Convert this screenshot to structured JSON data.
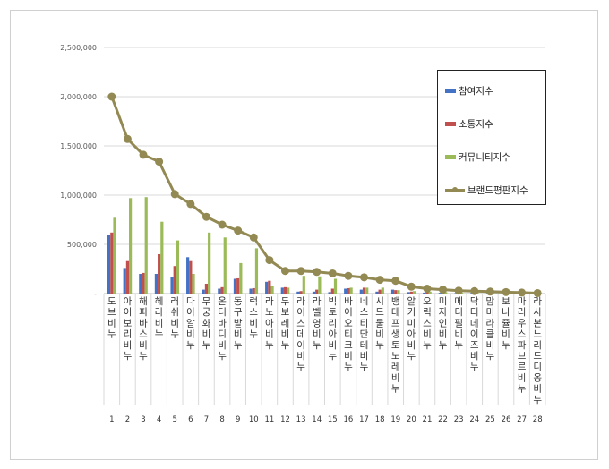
{
  "chart_data": {
    "type": "bar",
    "ylim": [
      0,
      2500000
    ],
    "yticks": [
      "2,500,000",
      "2,000,000",
      "1,500,000",
      "1,000,000",
      "500,000",
      "-"
    ],
    "categories": [
      "도브 비누",
      "아이보리비누",
      "해피바스비누",
      "헤라비누",
      "러쉬비누",
      "다이알비누",
      "무궁화비누",
      "온더바디비누",
      "동구밭비누",
      "럭스비누",
      "라노아비누",
      "두보레비누",
      "라이스데이비누",
      "라벨영비누",
      "빅토리아비누",
      "바이오티크비누",
      "네스티단테비누",
      "시드물비누",
      "뱅데프생토노레비누",
      "알키미아비누",
      "오릭스비누",
      "미자인비누",
      "메디필비누",
      "닥터데이즈비누",
      "맘미라클비누",
      "보나쥴비누",
      "마리우스파브르비누",
      "라사본느리드디옹비누"
    ],
    "numbers": [
      "1",
      "2",
      "3",
      "4",
      "5",
      "6",
      "7",
      "8",
      "9",
      "10",
      "11",
      "12",
      "13",
      "14",
      "15",
      "16",
      "17",
      "18",
      "19",
      "20",
      "21",
      "22",
      "23",
      "24",
      "25",
      "26",
      "27",
      "28"
    ],
    "series": [
      {
        "name": "참여지수",
        "color": "#4472c4",
        "values": [
          600000,
          260000,
          200000,
          200000,
          170000,
          370000,
          40000,
          50000,
          150000,
          50000,
          120000,
          60000,
          20000,
          20000,
          15000,
          50000,
          40000,
          20000,
          40000,
          15000,
          10000,
          8000,
          5000,
          5000,
          3000,
          3000,
          2000,
          1000
        ]
      },
      {
        "name": "소통지수",
        "color": "#c0504d",
        "values": [
          620000,
          330000,
          210000,
          400000,
          280000,
          330000,
          100000,
          65000,
          155000,
          55000,
          130000,
          65000,
          25000,
          40000,
          50000,
          55000,
          60000,
          40000,
          35000,
          20000,
          15000,
          10000,
          8000,
          5000,
          4000,
          3000,
          2000,
          1000
        ]
      },
      {
        "name": "커뮤니티지수",
        "color": "#9bbb59",
        "values": [
          770000,
          970000,
          980000,
          730000,
          540000,
          200000,
          620000,
          570000,
          310000,
          460000,
          80000,
          60000,
          180000,
          175000,
          150000,
          60000,
          60000,
          60000,
          35000,
          25000,
          20000,
          15000,
          10000,
          8000,
          5000,
          4000,
          3000,
          2000
        ]
      },
      {
        "name": "브랜드평판지수",
        "color": "#938953",
        "kind": "line",
        "values": [
          2000000,
          1570000,
          1410000,
          1340000,
          1010000,
          910000,
          780000,
          700000,
          640000,
          570000,
          340000,
          230000,
          230000,
          220000,
          205000,
          180000,
          165000,
          140000,
          130000,
          70000,
          50000,
          40000,
          30000,
          25000,
          20000,
          15000,
          10000,
          5000
        ]
      }
    ]
  }
}
